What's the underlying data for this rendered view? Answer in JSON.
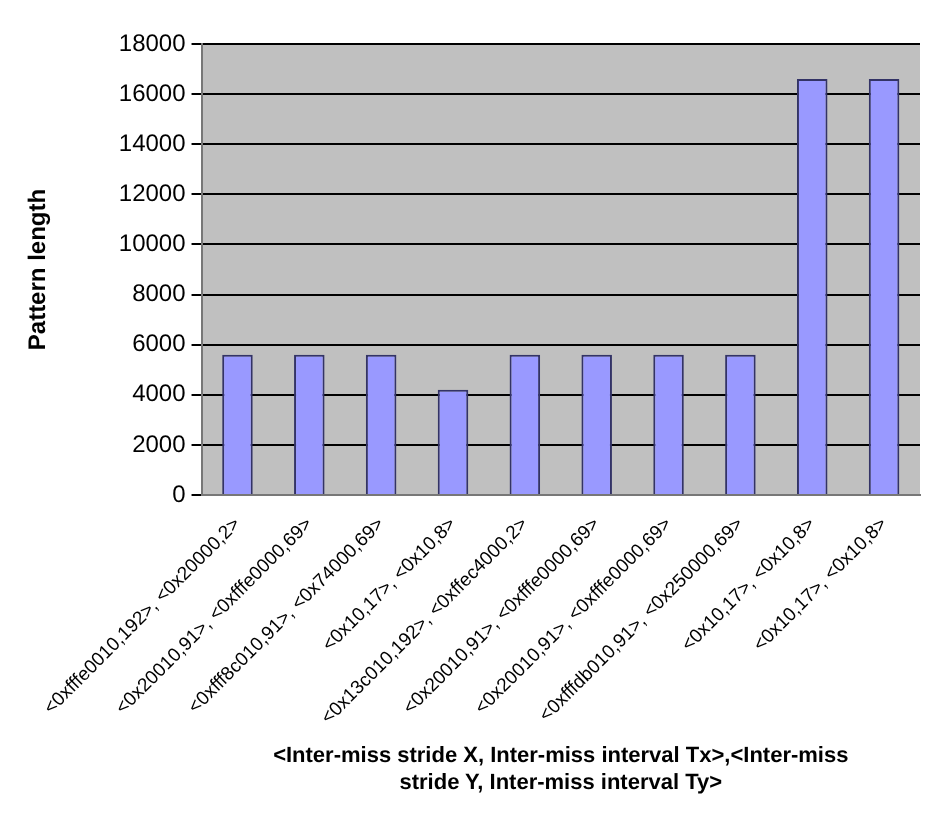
{
  "chart_data": {
    "type": "bar",
    "ylabel": "Pattern length",
    "xlabel": "<Inter-miss stride X, Inter-miss interval Tx>,<Inter-miss stride Y, Inter-miss interval Ty>",
    "categories": [
      "<0xfffe0010,192>, <0x20000,2>",
      "<0x20010,91>, <0xfffe0000,69>",
      "<0xfff8c010,91>, <0x74000,69>",
      "<0x10,17>, <0x10,8>",
      "<0x13c010,192>, <0xffec4000,2>",
      "<0x20010,91>, <0xfffe0000,69>",
      "<0x20010,91>, <0xfffe0000,69>",
      "<0xfffdb010,91>, <0x250000,69>",
      "<0x10,17>, <0x10,8>",
      "<0x10,17>, <0x10,8>"
    ],
    "values": [
      5600,
      5600,
      5600,
      4200,
      5600,
      5600,
      5600,
      5600,
      16600,
      16600
    ],
    "color": "#9999ff",
    "ylim": [
      0,
      18000
    ],
    "yticks": [
      0,
      2000,
      4000,
      6000,
      8000,
      10000,
      12000,
      14000,
      16000,
      18000
    ],
    "grid": "y",
    "legend": false
  }
}
